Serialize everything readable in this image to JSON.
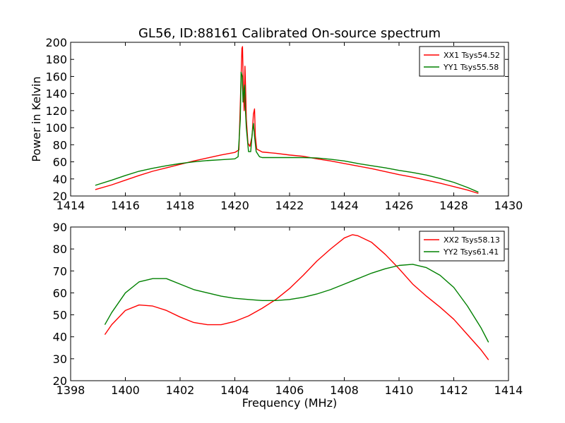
{
  "figure": {
    "background": "#ffffff"
  },
  "chart_data": [
    {
      "type": "line",
      "title": "GL56, ID:88161 Calibrated On-source spectrum",
      "xlabel": "",
      "ylabel": "Power in Kelvin",
      "xlim": [
        1414,
        1430
      ],
      "ylim": [
        20,
        200
      ],
      "xticks": [
        1414,
        1416,
        1418,
        1420,
        1422,
        1424,
        1426,
        1428,
        1430
      ],
      "yticks": [
        20,
        40,
        60,
        80,
        100,
        120,
        140,
        160,
        180,
        200
      ],
      "grid": false,
      "legend_position": "top-right",
      "series": [
        {
          "name": "XX1 Tsys54.52",
          "color": "#ff0000",
          "points": [
            [
              1414.9,
              27.5
            ],
            [
              1415.5,
              33
            ],
            [
              1416.0,
              38.5
            ],
            [
              1416.5,
              44
            ],
            [
              1417.0,
              49
            ],
            [
              1417.5,
              53
            ],
            [
              1418.0,
              57
            ],
            [
              1418.5,
              61
            ],
            [
              1419.0,
              64.5
            ],
            [
              1419.5,
              68
            ],
            [
              1420.0,
              71
            ],
            [
              1420.15,
              74
            ],
            [
              1420.22,
              150
            ],
            [
              1420.26,
              193
            ],
            [
              1420.28,
              195
            ],
            [
              1420.31,
              150
            ],
            [
              1420.34,
              120
            ],
            [
              1420.37,
              172
            ],
            [
              1420.39,
              150
            ],
            [
              1420.42,
              110
            ],
            [
              1420.48,
              82
            ],
            [
              1420.55,
              78
            ],
            [
              1420.63,
              90
            ],
            [
              1420.68,
              116
            ],
            [
              1420.72,
              122
            ],
            [
              1420.75,
              90
            ],
            [
              1420.8,
              75
            ],
            [
              1421.0,
              71.5
            ],
            [
              1421.5,
              70
            ],
            [
              1422.0,
              68
            ],
            [
              1422.5,
              66.5
            ],
            [
              1423.0,
              63.5
            ],
            [
              1423.5,
              61
            ],
            [
              1424.0,
              58
            ],
            [
              1424.5,
              55
            ],
            [
              1425.0,
              52
            ],
            [
              1425.5,
              48.5
            ],
            [
              1426.0,
              45
            ],
            [
              1426.5,
              42
            ],
            [
              1427.0,
              38.5
            ],
            [
              1427.5,
              35
            ],
            [
              1428.0,
              31
            ],
            [
              1428.5,
              27
            ],
            [
              1428.9,
              23
            ]
          ]
        },
        {
          "name": "YY1 Tsys55.58",
          "color": "#008000",
          "points": [
            [
              1414.9,
              32.5
            ],
            [
              1415.5,
              38.5
            ],
            [
              1416.0,
              44
            ],
            [
              1416.5,
              49
            ],
            [
              1417.0,
              52.5
            ],
            [
              1417.5,
              55.5
            ],
            [
              1418.0,
              58
            ],
            [
              1418.5,
              60
            ],
            [
              1419.0,
              61.5
            ],
            [
              1419.5,
              62.5
            ],
            [
              1420.0,
              63.5
            ],
            [
              1420.12,
              66
            ],
            [
              1420.2,
              110
            ],
            [
              1420.23,
              165
            ],
            [
              1420.27,
              160
            ],
            [
              1420.3,
              130
            ],
            [
              1420.34,
              145
            ],
            [
              1420.36,
              150
            ],
            [
              1420.38,
              125
            ],
            [
              1420.42,
              100
            ],
            [
              1420.5,
              72
            ],
            [
              1420.58,
              72
            ],
            [
              1420.64,
              95
            ],
            [
              1420.68,
              105
            ],
            [
              1420.72,
              90
            ],
            [
              1420.78,
              72
            ],
            [
              1420.9,
              66
            ],
            [
              1421.0,
              65
            ],
            [
              1421.5,
              65
            ],
            [
              1422.0,
              65
            ],
            [
              1422.5,
              65
            ],
            [
              1423.0,
              64.5
            ],
            [
              1423.5,
              63
            ],
            [
              1424.0,
              61
            ],
            [
              1424.5,
              58
            ],
            [
              1425.0,
              55.5
            ],
            [
              1425.5,
              53
            ],
            [
              1426.0,
              50
            ],
            [
              1426.5,
              47.5
            ],
            [
              1427.0,
              44.5
            ],
            [
              1427.5,
              40.5
            ],
            [
              1428.0,
              36
            ],
            [
              1428.5,
              30
            ],
            [
              1428.9,
              24.5
            ]
          ]
        }
      ]
    },
    {
      "type": "line",
      "title": "",
      "xlabel": "Frequency (MHz)",
      "ylabel": "",
      "xlim": [
        1398,
        1414
      ],
      "ylim": [
        20,
        90
      ],
      "xticks": [
        1398,
        1400,
        1402,
        1404,
        1406,
        1408,
        1410,
        1412,
        1414
      ],
      "yticks": [
        20,
        30,
        40,
        50,
        60,
        70,
        80,
        90
      ],
      "grid": false,
      "legend_position": "top-right",
      "series": [
        {
          "name": "XX2 Tsys58.13",
          "color": "#ff0000",
          "points": [
            [
              1399.25,
              41
            ],
            [
              1399.5,
              45.5
            ],
            [
              1400.0,
              52
            ],
            [
              1400.5,
              54.5
            ],
            [
              1401.0,
              54
            ],
            [
              1401.5,
              52
            ],
            [
              1402.0,
              49
            ],
            [
              1402.5,
              46.5
            ],
            [
              1403.0,
              45.5
            ],
            [
              1403.5,
              45.5
            ],
            [
              1404.0,
              47
            ],
            [
              1404.5,
              49.5
            ],
            [
              1405.0,
              53
            ],
            [
              1405.5,
              57
            ],
            [
              1406.0,
              62
            ],
            [
              1406.5,
              68
            ],
            [
              1407.0,
              74.5
            ],
            [
              1407.5,
              80
            ],
            [
              1408.0,
              85
            ],
            [
              1408.3,
              86.5
            ],
            [
              1408.5,
              86
            ],
            [
              1409.0,
              83
            ],
            [
              1409.5,
              77.5
            ],
            [
              1410.0,
              71
            ],
            [
              1410.5,
              64
            ],
            [
              1411.0,
              58.5
            ],
            [
              1411.5,
              53.5
            ],
            [
              1412.0,
              48
            ],
            [
              1412.5,
              41
            ],
            [
              1413.0,
              34
            ],
            [
              1413.27,
              29.5
            ]
          ]
        },
        {
          "name": "YY2 Tsys61.41",
          "color": "#008000",
          "points": [
            [
              1399.25,
              45.5
            ],
            [
              1399.5,
              51
            ],
            [
              1400.0,
              60
            ],
            [
              1400.5,
              65
            ],
            [
              1401.0,
              66.5
            ],
            [
              1401.5,
              66.5
            ],
            [
              1402.0,
              64
            ],
            [
              1402.5,
              61.5
            ],
            [
              1403.0,
              60
            ],
            [
              1403.5,
              58.5
            ],
            [
              1404.0,
              57.5
            ],
            [
              1404.5,
              57
            ],
            [
              1405.0,
              56.5
            ],
            [
              1405.5,
              56.5
            ],
            [
              1406.0,
              57
            ],
            [
              1406.5,
              58
            ],
            [
              1407.0,
              59.5
            ],
            [
              1407.5,
              61.5
            ],
            [
              1408.0,
              64
            ],
            [
              1408.5,
              66.5
            ],
            [
              1409.0,
              69
            ],
            [
              1409.5,
              71
            ],
            [
              1410.0,
              72.5
            ],
            [
              1410.5,
              73
            ],
            [
              1411.0,
              71.5
            ],
            [
              1411.5,
              68
            ],
            [
              1412.0,
              62.5
            ],
            [
              1412.5,
              54
            ],
            [
              1413.0,
              44
            ],
            [
              1413.27,
              37.5
            ]
          ]
        }
      ]
    }
  ]
}
